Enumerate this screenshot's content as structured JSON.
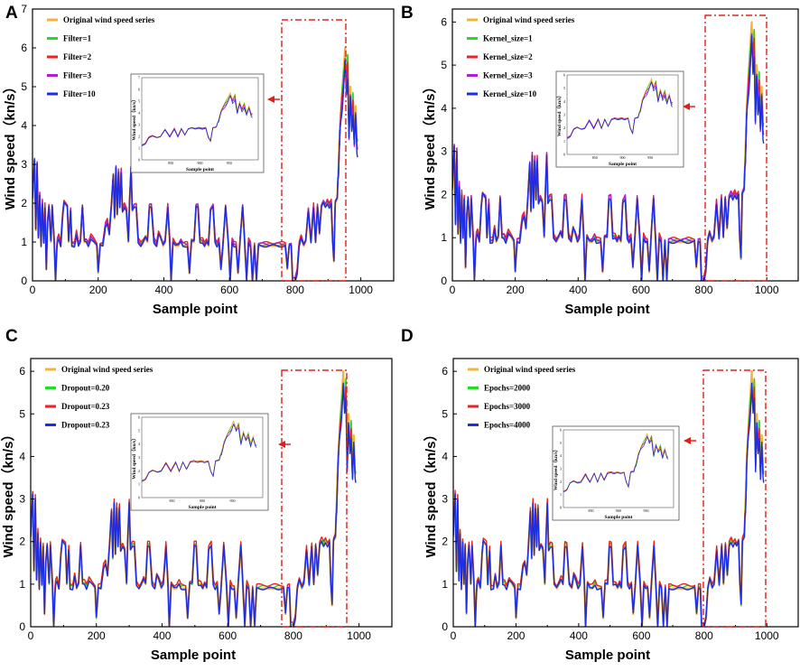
{
  "figure": {
    "x_axis_label": "Sample point",
    "y_axis_label": "Wind speed（kn/s）",
    "inset_x_label": "Sample point",
    "inset_y_label": "Wind speed（kn/s）"
  },
  "chart_data": [
    {
      "panel": "A",
      "type": "line",
      "xlabel": "Sample point",
      "ylabel": "Wind speed（kn/s）",
      "xlim": [
        0,
        1100
      ],
      "ylim": [
        0,
        7
      ],
      "xticks": [
        0,
        200,
        400,
        600,
        800,
        1000
      ],
      "yticks": [
        0,
        1,
        2,
        3,
        4,
        5,
        6,
        7
      ],
      "highlight_box": {
        "x": [
          800,
          990
        ],
        "y": [
          0,
          7.05
        ]
      },
      "inset": {
        "x_range": [
          800,
          1000
        ],
        "xticks": [
          850,
          900,
          950
        ],
        "ylim": [
          0,
          7
        ],
        "yticks": [
          0,
          1,
          2,
          3,
          4,
          5,
          6,
          7
        ]
      },
      "series": [
        {
          "name": "Original wind speed series",
          "color": "#f4b43a"
        },
        {
          "name": "Filter=1",
          "color": "#22dd22"
        },
        {
          "name": "Filter=2",
          "color": "#ee2222"
        },
        {
          "name": "Filter=3",
          "color": "#b020d0"
        },
        {
          "name": "Filter=10",
          "color": "#1a2ee6"
        }
      ]
    },
    {
      "panel": "B",
      "type": "line",
      "xlabel": "Sample point",
      "ylabel": "Wind speed（kn/s）",
      "xlim": [
        0,
        1100
      ],
      "ylim": [
        0,
        6.3
      ],
      "xticks": [
        0,
        200,
        400,
        600,
        800,
        1000
      ],
      "yticks": [
        0,
        1,
        2,
        3,
        4,
        5,
        6
      ],
      "highlight_box": {
        "x": [
          800,
          990
        ],
        "y": [
          0,
          6.2
        ]
      },
      "inset": {
        "x_range": [
          800,
          1000
        ],
        "xticks": [
          850,
          900,
          950
        ],
        "ylim": [
          0,
          6
        ],
        "yticks": [
          0,
          1,
          2,
          3,
          4,
          5,
          6
        ]
      },
      "series": [
        {
          "name": "Original wind speed series",
          "color": "#f4b43a"
        },
        {
          "name": "Kernel_size=1",
          "color": "#22dd22"
        },
        {
          "name": "Kernel_size=2",
          "color": "#ee2222"
        },
        {
          "name": "Kernel_size=3",
          "color": "#b020d0"
        },
        {
          "name": "Kernel_size=10",
          "color": "#1a2ee6"
        }
      ]
    },
    {
      "panel": "C",
      "type": "line",
      "xlabel": "Sample point",
      "ylabel": "Wind speed（kn/s）",
      "xlim": [
        0,
        1100
      ],
      "ylim": [
        0,
        6.3
      ],
      "xticks": [
        0,
        200,
        400,
        600,
        800,
        1000
      ],
      "yticks": [
        0,
        1,
        2,
        3,
        4,
        5,
        6
      ],
      "highlight_box": {
        "x": [
          800,
          990
        ],
        "y": [
          0,
          6.0
        ]
      },
      "inset": {
        "x_range": [
          800,
          1000
        ],
        "xticks": [
          850,
          900,
          950
        ],
        "ylim": [
          0,
          6
        ],
        "yticks": [
          0,
          1,
          2,
          3,
          4,
          5,
          6
        ]
      },
      "series": [
        {
          "name": "Original wind speed series",
          "color": "#f4b43a"
        },
        {
          "name": "Dropout=0.20",
          "color": "#22dd22"
        },
        {
          "name": "Dropout=0.23",
          "color": "#ee2222"
        },
        {
          "name": "Dropout=0.23",
          "color": "#1a2ee6"
        }
      ]
    },
    {
      "panel": "D",
      "type": "line",
      "xlabel": "Sample point",
      "ylabel": "Wind speed（kn/s）",
      "xlim": [
        0,
        1100
      ],
      "ylim": [
        0,
        6.3
      ],
      "xticks": [
        0,
        200,
        400,
        600,
        800,
        1000
      ],
      "yticks": [
        0,
        1,
        2,
        3,
        4,
        5,
        6
      ],
      "highlight_box": {
        "x": [
          800,
          990
        ],
        "y": [
          0,
          6.1
        ]
      },
      "inset": {
        "x_range": [
          800,
          1000
        ],
        "xticks": [
          850,
          900,
          950
        ],
        "ylim": [
          0,
          6
        ],
        "yticks": [
          0,
          1,
          2,
          3,
          4,
          5,
          6
        ]
      },
      "series": [
        {
          "name": "Original wind speed series",
          "color": "#f4b43a"
        },
        {
          "name": "Epochs=2000",
          "color": "#22dd22"
        },
        {
          "name": "Epochs=3000",
          "color": "#ee2222"
        },
        {
          "name": "Epochs=4000",
          "color": "#1a2ee6"
        }
      ]
    }
  ],
  "wind_speed_knots": [
    [
      0,
      2.1
    ],
    [
      6,
      3.1
    ],
    [
      10,
      1.3
    ],
    [
      14,
      3.0
    ],
    [
      18,
      1.1
    ],
    [
      22,
      2.2
    ],
    [
      26,
      0.9
    ],
    [
      30,
      2.0
    ],
    [
      34,
      1.0
    ],
    [
      38,
      1.9
    ],
    [
      42,
      0.3
    ],
    [
      46,
      1.5
    ],
    [
      50,
      1.9
    ],
    [
      56,
      1.0
    ],
    [
      60,
      1.9
    ],
    [
      66,
      1.0
    ],
    [
      70,
      0.0
    ],
    [
      75,
      1.0
    ],
    [
      80,
      1.1
    ],
    [
      86,
      0.9
    ],
    [
      92,
      1.7
    ],
    [
      96,
      2.0
    ],
    [
      106,
      1.9
    ],
    [
      110,
      1.0
    ],
    [
      116,
      1.8
    ],
    [
      120,
      0.9
    ],
    [
      128,
      0.9
    ],
    [
      134,
      1.2
    ],
    [
      140,
      0.9
    ],
    [
      146,
      1.0
    ],
    [
      152,
      1.9
    ],
    [
      158,
      1.0
    ],
    [
      164,
      1.0
    ],
    [
      170,
      0.9
    ],
    [
      178,
      1.1
    ],
    [
      188,
      1.0
    ],
    [
      196,
      0.9
    ],
    [
      200,
      0.2
    ],
    [
      206,
      0.9
    ],
    [
      214,
      0.9
    ],
    [
      222,
      1.4
    ],
    [
      228,
      1.5
    ],
    [
      234,
      1.2
    ],
    [
      240,
      1.9
    ],
    [
      246,
      2.7
    ],
    [
      250,
      1.6
    ],
    [
      254,
      2.9
    ],
    [
      258,
      1.7
    ],
    [
      262,
      2.8
    ],
    [
      266,
      1.9
    ],
    [
      270,
      2.8
    ],
    [
      274,
      1.8
    ],
    [
      280,
      1.9
    ],
    [
      286,
      1.8
    ],
    [
      292,
      1.0
    ],
    [
      296,
      2.1
    ],
    [
      300,
      2.9
    ],
    [
      304,
      1.8
    ],
    [
      310,
      1.9
    ],
    [
      316,
      1.9
    ],
    [
      322,
      1.0
    ],
    [
      330,
      0.9
    ],
    [
      338,
      1.0
    ],
    [
      344,
      1.1
    ],
    [
      350,
      1.0
    ],
    [
      356,
      1.9
    ],
    [
      362,
      1.9
    ],
    [
      370,
      1.0
    ],
    [
      378,
      0.9
    ],
    [
      384,
      1.2
    ],
    [
      390,
      1.1
    ],
    [
      398,
      0.9
    ],
    [
      404,
      1.0
    ],
    [
      412,
      1.9
    ],
    [
      418,
      1.0
    ],
    [
      422,
      0.0
    ],
    [
      428,
      1.0
    ],
    [
      436,
      0.9
    ],
    [
      444,
      0.9
    ],
    [
      452,
      1.0
    ],
    [
      458,
      0.9
    ],
    [
      466,
      0.9
    ],
    [
      472,
      0.9
    ],
    [
      478,
      0.2
    ],
    [
      484,
      1.0
    ],
    [
      492,
      1.0
    ],
    [
      498,
      1.9
    ],
    [
      504,
      1.9
    ],
    [
      510,
      1.0
    ],
    [
      518,
      1.0
    ],
    [
      524,
      0.9
    ],
    [
      530,
      1.0
    ],
    [
      536,
      0.9
    ],
    [
      542,
      1.8
    ],
    [
      550,
      1.9
    ],
    [
      556,
      1.0
    ],
    [
      562,
      0.9
    ],
    [
      568,
      1.0
    ],
    [
      574,
      0.3
    ],
    [
      580,
      0.9
    ],
    [
      588,
      1.9
    ],
    [
      596,
      1.0
    ],
    [
      602,
      0.0
    ],
    [
      608,
      1.0
    ],
    [
      614,
      0.9
    ],
    [
      620,
      0.9
    ],
    [
      626,
      0.2
    ],
    [
      632,
      1.0
    ],
    [
      640,
      1.9
    ],
    [
      646,
      1.0
    ],
    [
      652,
      0.0
    ],
    [
      658,
      1.0
    ],
    [
      664,
      0.9
    ],
    [
      670,
      0.0
    ],
    [
      676,
      0.9
    ],
    [
      682,
      0.0
    ],
    [
      688,
      0.9
    ],
    [
      694,
      0.9
    ],
    [
      700,
      0.9
    ],
    [
      706,
      0.9
    ],
    [
      712,
      0.9
    ],
    [
      718,
      0.9
    ],
    [
      726,
      0.9
    ],
    [
      734,
      0.9
    ],
    [
      740,
      0.9
    ],
    [
      748,
      0.9
    ],
    [
      756,
      0.9
    ],
    [
      762,
      0.9
    ],
    [
      770,
      0.9
    ],
    [
      776,
      0.3
    ],
    [
      782,
      0.9
    ],
    [
      788,
      0.9
    ],
    [
      792,
      0.0
    ],
    [
      800,
      0.0
    ],
    [
      806,
      0.2
    ],
    [
      812,
      0.9
    ],
    [
      818,
      1.1
    ],
    [
      826,
      0.9
    ],
    [
      832,
      1.0
    ],
    [
      840,
      1.8
    ],
    [
      848,
      1.0
    ],
    [
      856,
      1.9
    ],
    [
      862,
      1.0
    ],
    [
      868,
      1.9
    ],
    [
      874,
      1.2
    ],
    [
      880,
      1.9
    ],
    [
      886,
      2.0
    ],
    [
      892,
      1.9
    ],
    [
      898,
      2.0
    ],
    [
      904,
      1.9
    ],
    [
      910,
      2.0
    ],
    [
      914,
      1.0
    ],
    [
      918,
      0.5
    ],
    [
      922,
      2.0
    ],
    [
      928,
      2.1
    ],
    [
      932,
      3.0
    ],
    [
      936,
      4.0
    ],
    [
      940,
      4.5
    ],
    [
      944,
      5.0
    ],
    [
      948,
      5.5
    ],
    [
      952,
      6.0
    ],
    [
      956,
      5.2
    ],
    [
      960,
      5.8
    ],
    [
      964,
      4.0
    ],
    [
      968,
      5.0
    ],
    [
      972,
      4.2
    ],
    [
      976,
      4.8
    ],
    [
      980,
      3.8
    ],
    [
      984,
      4.5
    ],
    [
      988,
      3.6
    ]
  ]
}
